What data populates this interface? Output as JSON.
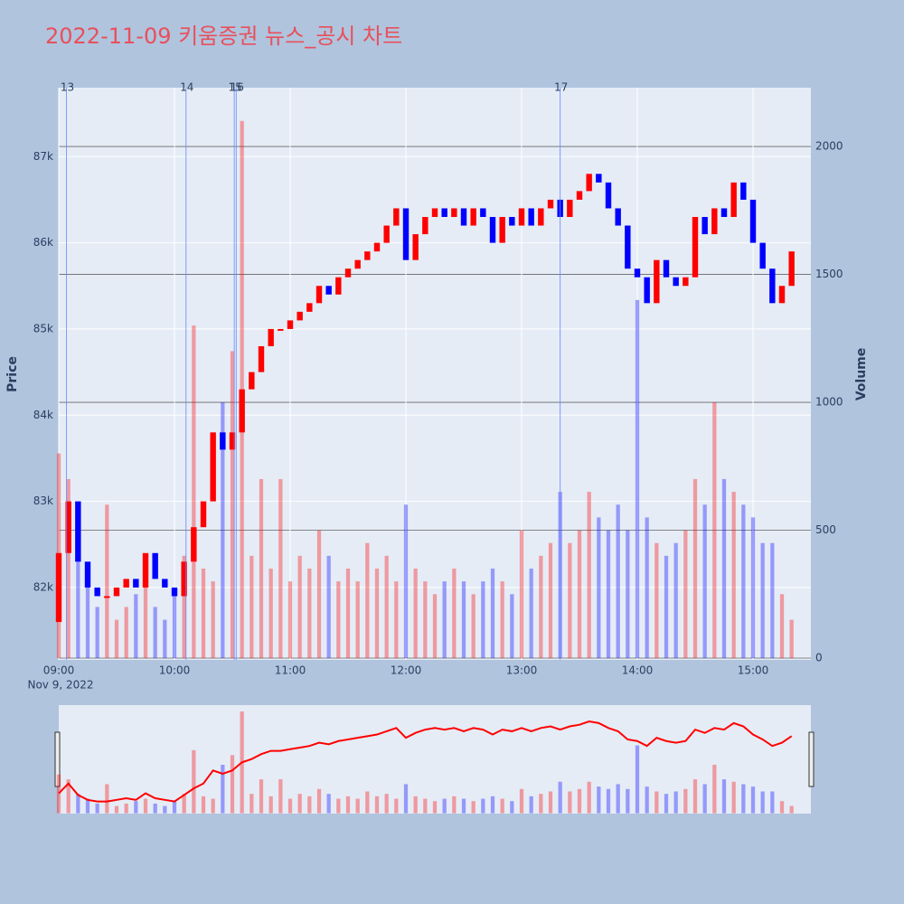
{
  "chart_data": {
    "type": "candlestick",
    "title": "2022-11-09 키움증권 뉴스_공시 차트",
    "y_title": "Price",
    "y2_title": "Volume",
    "x_date_label": "Nov 9, 2022",
    "increasing_color": "#ff0000",
    "decreasing_color": "#0000ff",
    "xlim": [
      "09:00",
      "15:30"
    ],
    "xticks": [
      "09:00",
      "10:00",
      "11:00",
      "12:00",
      "13:00",
      "14:00",
      "15:00"
    ],
    "ylim": [
      81160,
      87800
    ],
    "yticks": [
      {
        "value": 82000,
        "label": "82k"
      },
      {
        "value": 83000,
        "label": "83k"
      },
      {
        "value": 84000,
        "label": "84k"
      },
      {
        "value": 85000,
        "label": "85k"
      },
      {
        "value": 86000,
        "label": "86k"
      },
      {
        "value": 87000,
        "label": "87k"
      }
    ],
    "y2lim": [
      -7,
      2230
    ],
    "y2ticks": [
      0,
      500,
      1000,
      1500,
      2000
    ],
    "x": [
      "09:00",
      "09:05",
      "09:10",
      "09:15",
      "09:20",
      "09:25",
      "09:30",
      "09:35",
      "09:40",
      "09:45",
      "09:50",
      "09:55",
      "10:00",
      "10:05",
      "10:10",
      "10:15",
      "10:20",
      "10:25",
      "10:30",
      "10:35",
      "10:40",
      "10:45",
      "10:50",
      "10:55",
      "11:00",
      "11:05",
      "11:10",
      "11:15",
      "11:20",
      "11:25",
      "11:30",
      "11:35",
      "11:40",
      "11:45",
      "11:50",
      "11:55",
      "12:00",
      "12:05",
      "12:10",
      "12:15",
      "12:20",
      "12:25",
      "12:30",
      "12:35",
      "12:40",
      "12:45",
      "12:50",
      "12:55",
      "13:00",
      "13:05",
      "13:10",
      "13:15",
      "13:20",
      "13:25",
      "13:30",
      "13:35",
      "13:40",
      "13:45",
      "13:50",
      "13:55",
      "14:00",
      "14:05",
      "14:10",
      "14:15",
      "14:20",
      "14:25",
      "14:30",
      "14:35",
      "14:40",
      "14:45",
      "14:50",
      "14:55",
      "15:00",
      "15:05",
      "15:10",
      "15:15",
      "15:20"
    ],
    "open": [
      81600,
      82400,
      83000,
      82300,
      82000,
      81900,
      81900,
      82000,
      82100,
      82000,
      82400,
      82100,
      82000,
      81900,
      82300,
      82700,
      83000,
      83800,
      83600,
      83800,
      84300,
      84500,
      84800,
      85000,
      85000,
      85100,
      85200,
      85300,
      85500,
      85400,
      85600,
      85700,
      85800,
      85900,
      86000,
      86200,
      86400,
      85800,
      86100,
      86300,
      86400,
      86300,
      86400,
      86200,
      86400,
      86300,
      86000,
      86300,
      86200,
      86400,
      86200,
      86400,
      86500,
      86300,
      86500,
      86600,
      86800,
      86700,
      86400,
      86200,
      85700,
      85600,
      85300,
      85800,
      85600,
      85500,
      85600,
      86300,
      86100,
      86400,
      86300,
      86700,
      86500,
      86000,
      85700,
      85300,
      85500
    ],
    "close": [
      82400,
      83000,
      82300,
      82000,
      81900,
      81900,
      82000,
      82100,
      82000,
      82400,
      82100,
      82000,
      81900,
      82300,
      82700,
      83000,
      83800,
      83600,
      83800,
      84300,
      84500,
      84800,
      85000,
      85000,
      85100,
      85200,
      85300,
      85500,
      85400,
      85600,
      85700,
      85800,
      85900,
      86000,
      86200,
      86400,
      85800,
      86100,
      86300,
      86400,
      86300,
      86400,
      86200,
      86400,
      86300,
      86000,
      86300,
      86200,
      86400,
      86200,
      86400,
      86500,
      86300,
      86500,
      86600,
      86800,
      86700,
      86400,
      86200,
      85700,
      85600,
      85300,
      85800,
      85600,
      85500,
      85600,
      86300,
      86100,
      86400,
      86300,
      86700,
      86500,
      86000,
      85700,
      85300,
      85500,
      85900
    ],
    "volume": [
      800,
      700,
      400,
      300,
      200,
      600,
      150,
      200,
      250,
      300,
      200,
      150,
      250,
      400,
      1300,
      350,
      300,
      1000,
      1200,
      2100,
      400,
      700,
      350,
      700,
      300,
      400,
      350,
      500,
      400,
      300,
      350,
      300,
      450,
      350,
      400,
      300,
      600,
      350,
      300,
      250,
      300,
      350,
      300,
      250,
      300,
      350,
      300,
      250,
      500,
      350,
      400,
      450,
      650,
      450,
      500,
      650,
      550,
      500,
      600,
      500,
      1400,
      550,
      450,
      400,
      450,
      500,
      700,
      600,
      1000,
      700,
      650,
      600,
      550,
      450,
      450,
      250,
      150
    ],
    "news_events": [
      {
        "label": "13",
        "x": "09:04"
      },
      {
        "label": "14",
        "x": "10:06"
      },
      {
        "label": "15",
        "x": "10:31"
      },
      {
        "label": "16",
        "x": "10:32"
      },
      {
        "label": "17",
        "x": "13:20"
      }
    ]
  }
}
